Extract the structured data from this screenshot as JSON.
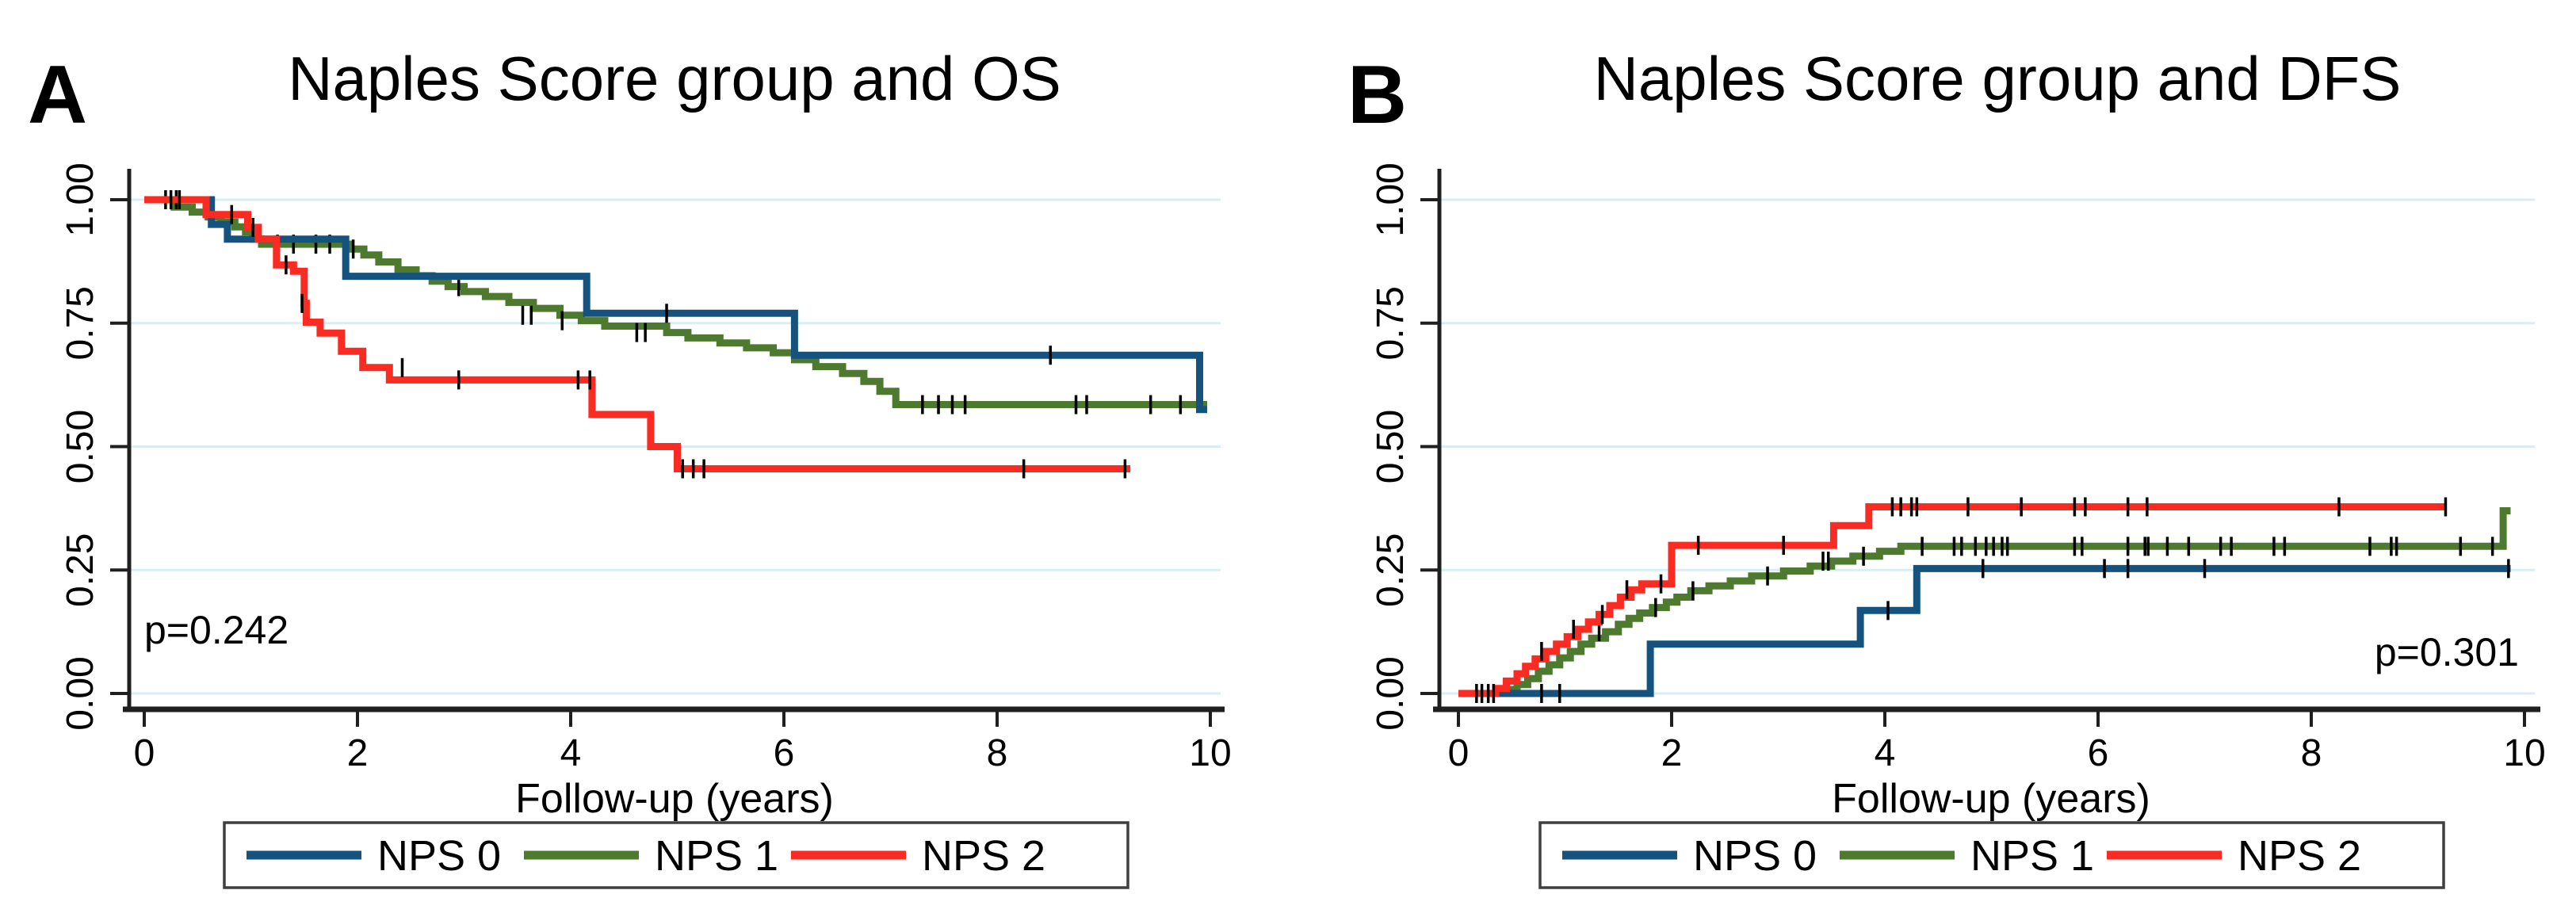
{
  "figure": {
    "background": "#ffffff",
    "p_values": [
      "p=0.242",
      "p=0.301"
    ]
  },
  "colors": {
    "nps0": "#15537E",
    "nps1": "#4D7A2E",
    "nps2": "#F92B22",
    "grid": "#DAEDF2",
    "axis": "#1F1F1F",
    "censor": "#000000",
    "legend_border": "#3F3F3F"
  },
  "chart_data": [
    {
      "type": "line",
      "subtype": "kaplan-meier-step",
      "panel_label": "A",
      "title": "Naples Score group and OS",
      "xlabel": "Follow-up (years)",
      "ylabel": "",
      "p_value_text": "p=0.242",
      "p_value_position": "bottom-left",
      "xlim": [
        0,
        10.2
      ],
      "ylim": [
        0,
        1.0
      ],
      "grid": true,
      "legend_position": "bottom",
      "xticks": [
        0,
        2,
        4,
        6,
        8,
        10
      ],
      "yticks": [
        {
          "label": "0.00",
          "value": 0.0
        },
        {
          "label": "0.25",
          "value": 0.25
        },
        {
          "label": "0.50",
          "value": 0.5
        },
        {
          "label": "0.75",
          "value": 0.75
        },
        {
          "label": "1.00",
          "value": 1.0
        }
      ],
      "series": [
        {
          "name": "NPS 0",
          "color_key": "nps0",
          "z": 2,
          "end": 9.97,
          "steps": [
            [
              0,
              1.0
            ],
            [
              0.63,
              0.95
            ],
            [
              0.78,
              0.92
            ],
            [
              1.89,
              0.845
            ],
            [
              4.15,
              0.77
            ],
            [
              6.1,
              0.685
            ],
            [
              9.9,
              0.575
            ]
          ],
          "censors": [
            [
              0.2,
              1.0
            ],
            [
              0.3,
              1.0
            ],
            [
              4.9,
              0.77
            ],
            [
              8.5,
              0.685
            ]
          ]
        },
        {
          "name": "NPS 1",
          "color_key": "nps1",
          "z": 1,
          "end": 9.97,
          "steps": [
            [
              0,
              1.0
            ],
            [
              0.28,
              0.985
            ],
            [
              0.45,
              0.975
            ],
            [
              0.6,
              0.965
            ],
            [
              0.72,
              0.955
            ],
            [
              0.85,
              0.945
            ],
            [
              0.95,
              0.935
            ],
            [
              1.02,
              0.92
            ],
            [
              1.1,
              0.91
            ],
            [
              1.93,
              0.9
            ],
            [
              2.06,
              0.888
            ],
            [
              2.2,
              0.874
            ],
            [
              2.38,
              0.858
            ],
            [
              2.55,
              0.846
            ],
            [
              2.7,
              0.835
            ],
            [
              2.85,
              0.824
            ],
            [
              3.0,
              0.814
            ],
            [
              3.2,
              0.804
            ],
            [
              3.42,
              0.792
            ],
            [
              3.65,
              0.78
            ],
            [
              3.9,
              0.766
            ],
            [
              4.1,
              0.755
            ],
            [
              4.32,
              0.744
            ],
            [
              4.9,
              0.731
            ],
            [
              5.1,
              0.72
            ],
            [
              5.4,
              0.71
            ],
            [
              5.65,
              0.7
            ],
            [
              5.9,
              0.69
            ],
            [
              6.1,
              0.676
            ],
            [
              6.3,
              0.662
            ],
            [
              6.55,
              0.648
            ],
            [
              6.75,
              0.632
            ],
            [
              6.9,
              0.612
            ],
            [
              7.05,
              0.585
            ]
          ],
          "censors": [
            [
              1.25,
              0.91
            ],
            [
              1.4,
              0.91
            ],
            [
              1.61,
              0.91
            ],
            [
              1.74,
              0.91
            ],
            [
              1.96,
              0.9
            ],
            [
              2.95,
              0.824
            ],
            [
              3.55,
              0.766
            ],
            [
              3.63,
              0.766
            ],
            [
              3.92,
              0.755
            ],
            [
              4.62,
              0.731
            ],
            [
              4.7,
              0.731
            ],
            [
              7.3,
              0.585
            ],
            [
              7.45,
              0.585
            ],
            [
              7.58,
              0.585
            ],
            [
              7.7,
              0.585
            ],
            [
              8.74,
              0.585
            ],
            [
              8.84,
              0.585
            ],
            [
              9.44,
              0.585
            ],
            [
              9.72,
              0.585
            ]
          ]
        },
        {
          "name": "NPS 2",
          "color_key": "nps2",
          "z": 3,
          "end": 9.25,
          "steps": [
            [
              0,
              1.0
            ],
            [
              0.58,
              0.97
            ],
            [
              0.97,
              0.944
            ],
            [
              1.07,
              0.92
            ],
            [
              1.24,
              0.868
            ],
            [
              1.4,
              0.855
            ],
            [
              1.5,
              0.79
            ],
            [
              1.52,
              0.752
            ],
            [
              1.65,
              0.73
            ],
            [
              1.85,
              0.693
            ],
            [
              2.05,
              0.66
            ],
            [
              2.3,
              0.635
            ],
            [
              4.2,
              0.565
            ],
            [
              4.75,
              0.5
            ],
            [
              5.0,
              0.455
            ]
          ],
          "censors": [
            [
              0.25,
              1.0
            ],
            [
              0.33,
              1.0
            ],
            [
              0.82,
              0.97
            ],
            [
              1.02,
              0.944
            ],
            [
              1.33,
              0.868
            ],
            [
              1.48,
              0.79
            ],
            [
              2.42,
              0.66
            ],
            [
              2.95,
              0.635
            ],
            [
              4.07,
              0.635
            ],
            [
              4.18,
              0.635
            ],
            [
              5.05,
              0.455
            ],
            [
              5.15,
              0.455
            ],
            [
              5.25,
              0.455
            ],
            [
              8.25,
              0.455
            ],
            [
              9.2,
              0.455
            ]
          ]
        }
      ]
    },
    {
      "type": "line",
      "subtype": "kaplan-meier-step",
      "panel_label": "B",
      "title": "Naples Score group and DFS",
      "xlabel": "Follow-up (years)",
      "ylabel": "",
      "p_value_text": "p=0.301",
      "p_value_position": "bottom-right",
      "xlim": [
        0,
        10.2
      ],
      "ylim": [
        0,
        1.0
      ],
      "grid": true,
      "legend_position": "bottom",
      "xticks": [
        0,
        2,
        4,
        6,
        8,
        10
      ],
      "yticks": [
        {
          "label": "0.00",
          "value": 0.0
        },
        {
          "label": "0.25",
          "value": 0.25
        },
        {
          "label": "0.50",
          "value": 0.5
        },
        {
          "label": "0.75",
          "value": 0.75
        },
        {
          "label": "1.00",
          "value": 1.0
        }
      ],
      "series": [
        {
          "name": "NPS 0",
          "color_key": "nps0",
          "z": 2,
          "end": 9.87,
          "steps": [
            [
              0,
              0.0
            ],
            [
              1.8,
              0.1
            ],
            [
              3.77,
              0.168
            ],
            [
              4.3,
              0.253
            ]
          ],
          "censors": [
            [
              0.78,
              0.0
            ],
            [
              0.95,
              0.0
            ],
            [
              4.03,
              0.168
            ],
            [
              4.92,
              0.253
            ],
            [
              6.06,
              0.253
            ],
            [
              6.28,
              0.253
            ],
            [
              7.0,
              0.253
            ],
            [
              9.85,
              0.253
            ]
          ]
        },
        {
          "name": "NPS 1",
          "color_key": "nps1",
          "z": 1,
          "end": 9.87,
          "steps": [
            [
              0,
              0.0
            ],
            [
              0.45,
              0.008
            ],
            [
              0.55,
              0.018
            ],
            [
              0.65,
              0.03
            ],
            [
              0.75,
              0.045
            ],
            [
              0.85,
              0.058
            ],
            [
              0.95,
              0.072
            ],
            [
              1.05,
              0.085
            ],
            [
              1.15,
              0.1
            ],
            [
              1.25,
              0.112
            ],
            [
              1.38,
              0.125
            ],
            [
              1.5,
              0.14
            ],
            [
              1.6,
              0.152
            ],
            [
              1.7,
              0.163
            ],
            [
              1.82,
              0.174
            ],
            [
              1.95,
              0.185
            ],
            [
              2.05,
              0.195
            ],
            [
              2.18,
              0.208
            ],
            [
              2.35,
              0.218
            ],
            [
              2.55,
              0.228
            ],
            [
              2.75,
              0.238
            ],
            [
              3.05,
              0.248
            ],
            [
              3.3,
              0.258
            ],
            [
              3.5,
              0.268
            ],
            [
              3.7,
              0.278
            ],
            [
              3.95,
              0.288
            ],
            [
              4.15,
              0.298
            ],
            [
              9.8,
              0.37
            ]
          ],
          "censors": [
            [
              1.32,
              0.125
            ],
            [
              1.85,
              0.174
            ],
            [
              2.2,
              0.208
            ],
            [
              2.9,
              0.238
            ],
            [
              3.42,
              0.268
            ],
            [
              3.47,
              0.268
            ],
            [
              3.8,
              0.278
            ],
            [
              4.35,
              0.298
            ],
            [
              4.65,
              0.298
            ],
            [
              4.72,
              0.298
            ],
            [
              4.85,
              0.298
            ],
            [
              4.95,
              0.298
            ],
            [
              5.02,
              0.298
            ],
            [
              5.1,
              0.298
            ],
            [
              5.15,
              0.298
            ],
            [
              5.78,
              0.298
            ],
            [
              5.85,
              0.298
            ],
            [
              6.28,
              0.298
            ],
            [
              6.44,
              0.298
            ],
            [
              6.47,
              0.298
            ],
            [
              6.65,
              0.298
            ],
            [
              6.85,
              0.298
            ],
            [
              7.15,
              0.298
            ],
            [
              7.25,
              0.298
            ],
            [
              7.65,
              0.298
            ],
            [
              7.75,
              0.298
            ],
            [
              8.55,
              0.298
            ],
            [
              8.75,
              0.298
            ],
            [
              8.8,
              0.298
            ],
            [
              9.4,
              0.298
            ],
            [
              9.7,
              0.298
            ]
          ]
        },
        {
          "name": "NPS 2",
          "color_key": "nps2",
          "z": 3,
          "end": 9.26,
          "steps": [
            [
              0,
              0.0
            ],
            [
              0.35,
              0.01
            ],
            [
              0.45,
              0.025
            ],
            [
              0.55,
              0.04
            ],
            [
              0.63,
              0.055
            ],
            [
              0.72,
              0.07
            ],
            [
              0.82,
              0.085
            ],
            [
              0.92,
              0.1
            ],
            [
              1.02,
              0.115
            ],
            [
              1.12,
              0.13
            ],
            [
              1.22,
              0.145
            ],
            [
              1.32,
              0.16
            ],
            [
              1.42,
              0.178
            ],
            [
              1.52,
              0.195
            ],
            [
              1.62,
              0.21
            ],
            [
              1.72,
              0.222
            ],
            [
              2.0,
              0.3
            ],
            [
              3.52,
              0.34
            ],
            [
              3.85,
              0.378
            ]
          ],
          "censors": [
            [
              0.17,
              0.0
            ],
            [
              0.22,
              0.0
            ],
            [
              0.28,
              0.0
            ],
            [
              0.33,
              0.0
            ],
            [
              0.78,
              0.085
            ],
            [
              1.08,
              0.13
            ],
            [
              1.35,
              0.16
            ],
            [
              1.58,
              0.21
            ],
            [
              1.9,
              0.222
            ],
            [
              2.25,
              0.3
            ],
            [
              3.05,
              0.3
            ],
            [
              4.07,
              0.378
            ],
            [
              4.15,
              0.378
            ],
            [
              4.25,
              0.378
            ],
            [
              4.3,
              0.378
            ],
            [
              4.78,
              0.378
            ],
            [
              5.28,
              0.378
            ],
            [
              5.78,
              0.378
            ],
            [
              5.88,
              0.378
            ],
            [
              6.28,
              0.378
            ],
            [
              6.46,
              0.378
            ],
            [
              8.26,
              0.378
            ],
            [
              9.26,
              0.378
            ]
          ]
        }
      ]
    }
  ]
}
